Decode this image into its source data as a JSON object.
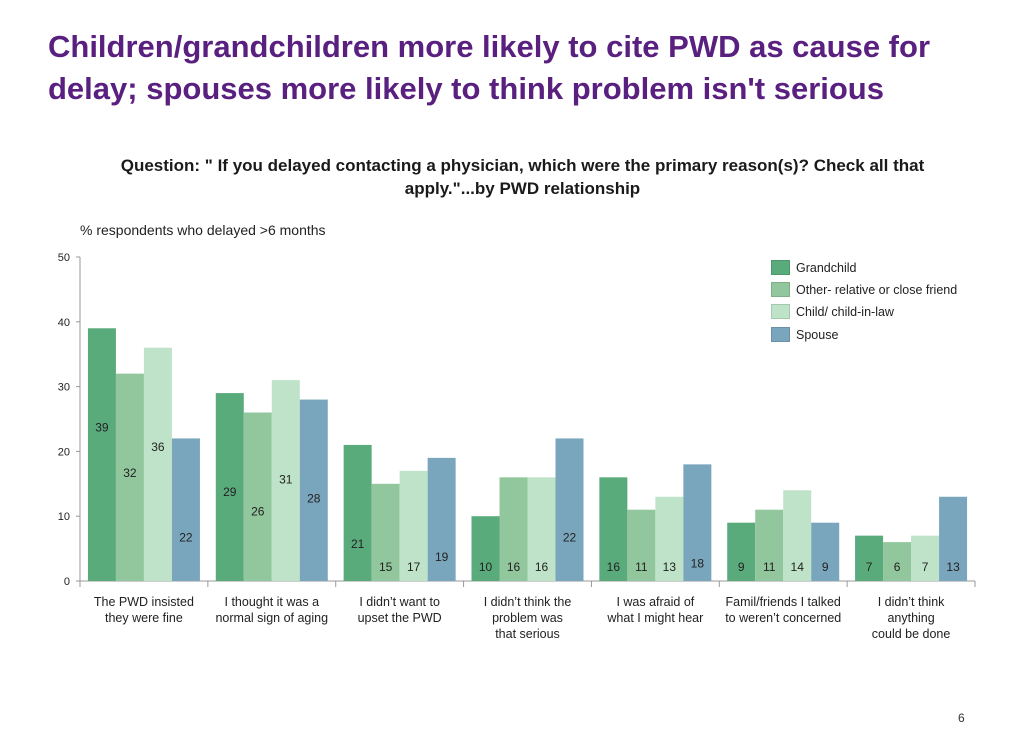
{
  "slide": {
    "headline": "Children/grandchildren more likely to cite PWD as cause for delay; spouses more likely to think problem isn't serious",
    "question": "Question: \" If you delayed contacting a physician, which were the primary reason(s)? Check all that apply.\"...by PWD relationship",
    "page_number": "6"
  },
  "chart_data": {
    "type": "bar",
    "title": "",
    "ylabel": "% respondents who delayed >6 months",
    "xlabel": "",
    "ylim": [
      0,
      50
    ],
    "yticks": [
      0,
      10,
      20,
      30,
      40,
      50
    ],
    "grid": false,
    "legend_position": "top-right",
    "categories": [
      [
        "The PWD insisted",
        "they were fine"
      ],
      [
        "I thought it was a",
        "normal sign of aging"
      ],
      [
        "I didn’t want to",
        "upset the PWD"
      ],
      [
        "I didn’t think the",
        "problem was",
        "that serious"
      ],
      [
        "I was afraid of",
        "what I might hear"
      ],
      [
        "Famil/friends I talked",
        "to weren’t concerned"
      ],
      [
        "I didn’t think",
        "anything",
        "could be done"
      ]
    ],
    "series": [
      {
        "name": "Grandchild",
        "color": "#5aab7c",
        "values": [
          39,
          29,
          21,
          10,
          16,
          9,
          7
        ]
      },
      {
        "name": "Other- relative or close friend",
        "color": "#92c79d",
        "values": [
          32,
          26,
          15,
          16,
          11,
          11,
          6
        ]
      },
      {
        "name": "Child/ child-in-law",
        "color": "#bfe3c8",
        "values": [
          36,
          31,
          17,
          16,
          13,
          14,
          7
        ]
      },
      {
        "name": "Spouse",
        "color": "#7aa6bd",
        "values": [
          22,
          28,
          19,
          22,
          18,
          9,
          13
        ]
      }
    ]
  }
}
